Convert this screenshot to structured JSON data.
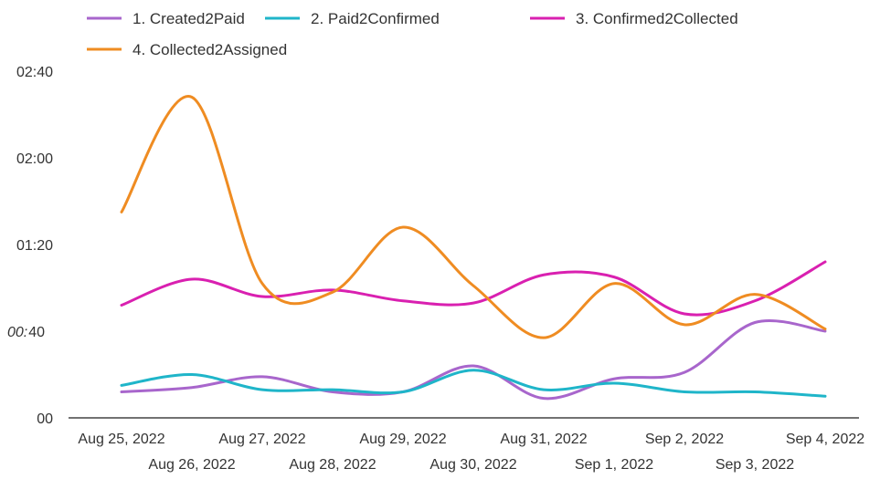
{
  "chart_data": {
    "type": "line",
    "title": "",
    "xlabel": "",
    "ylabel": "",
    "legend_position": "top-left",
    "grid": false,
    "y_axis": {
      "unit": "minutes:seconds",
      "ylim_seconds": [
        0,
        160
      ],
      "tick_labels": [
        {
          "value_seconds": 0,
          "label": "00"
        },
        {
          "value_seconds": 40,
          "label_prefix": "00:",
          "label": "40"
        },
        {
          "value_seconds": 80,
          "label": "01:20"
        },
        {
          "value_seconds": 120,
          "label": "02:00"
        },
        {
          "value_seconds": 160,
          "label": "02:40"
        }
      ]
    },
    "x": [
      "Aug 25, 2022",
      "Aug 26, 2022",
      "Aug 27, 2022",
      "Aug 28, 2022",
      "Aug 29, 2022",
      "Aug 30, 2022",
      "Aug 31, 2022",
      "Sep 1, 2022",
      "Sep 2, 2022",
      "Sep 3, 2022",
      "Sep 4, 2022"
    ],
    "series": [
      {
        "name": "1. Created2Paid",
        "color": "#a866cc",
        "values_seconds": [
          12,
          14,
          19,
          12,
          12,
          24,
          9,
          18,
          21,
          44,
          40
        ]
      },
      {
        "name": "2. Paid2Confirmed",
        "color": "#1fb5c9",
        "values_seconds": [
          15,
          20,
          13,
          13,
          12,
          22,
          13,
          16,
          12,
          12,
          10
        ]
      },
      {
        "name": "3. Confirmed2Collected",
        "color": "#d920b0",
        "values_seconds": [
          52,
          64,
          56,
          59,
          54,
          53,
          66,
          65,
          48,
          54,
          72
        ]
      },
      {
        "name": "4. Collected2Assigned",
        "color": "#ef8c22",
        "values_seconds": [
          95,
          148,
          62,
          58,
          88,
          61,
          37,
          62,
          43,
          57,
          41
        ]
      }
    ]
  }
}
